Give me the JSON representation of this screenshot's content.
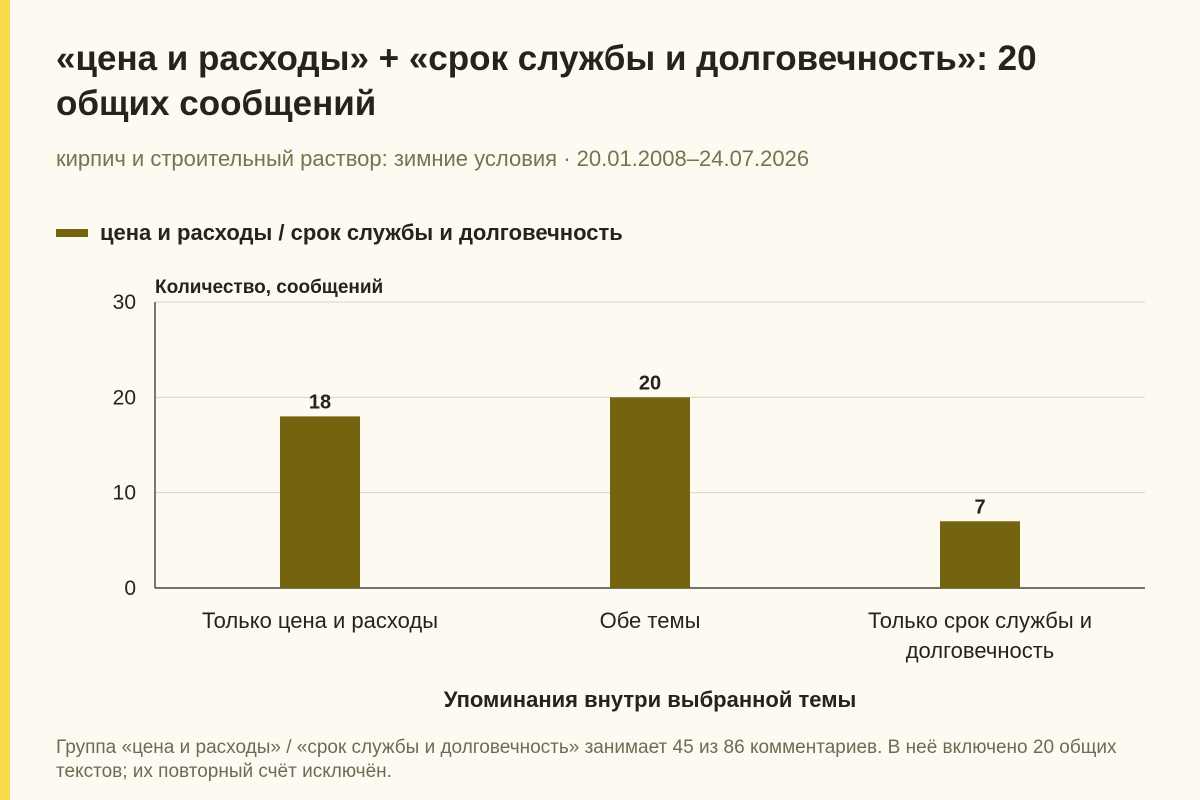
{
  "title": "«цена и расходы» + «срок службы и долговечность»: 20 общих сообщений",
  "subtitle": "кирпич и строительный раствор: зимние условия · 20.01.2008–24.07.2026",
  "note": "Группа «цена и расходы» / «срок службы и долговечность» занимает 45 из 86 комментариев. В неё включено 20 общих текстов; их повторный счёт исключён.",
  "colors": {
    "bar": "#75640f",
    "accent": "#f7d94a",
    "text": "#24231d",
    "muted": "#7a7150"
  },
  "chart_data": {
    "type": "bar",
    "categories": [
      [
        "Только цена и расходы"
      ],
      [
        "Обе темы"
      ],
      [
        "Только срок службы и",
        "долговечность"
      ]
    ],
    "series": [
      {
        "name": "цена и расходы / срок службы и долговечность",
        "values": [
          18,
          20,
          7
        ]
      }
    ],
    "ylabel": "Количество, сообщений",
    "xlabel": "Упоминания внутри выбранной темы",
    "ylim": [
      0,
      30
    ],
    "yticks": [
      0,
      10,
      20,
      30
    ],
    "grid": true,
    "legend": "top-left"
  }
}
